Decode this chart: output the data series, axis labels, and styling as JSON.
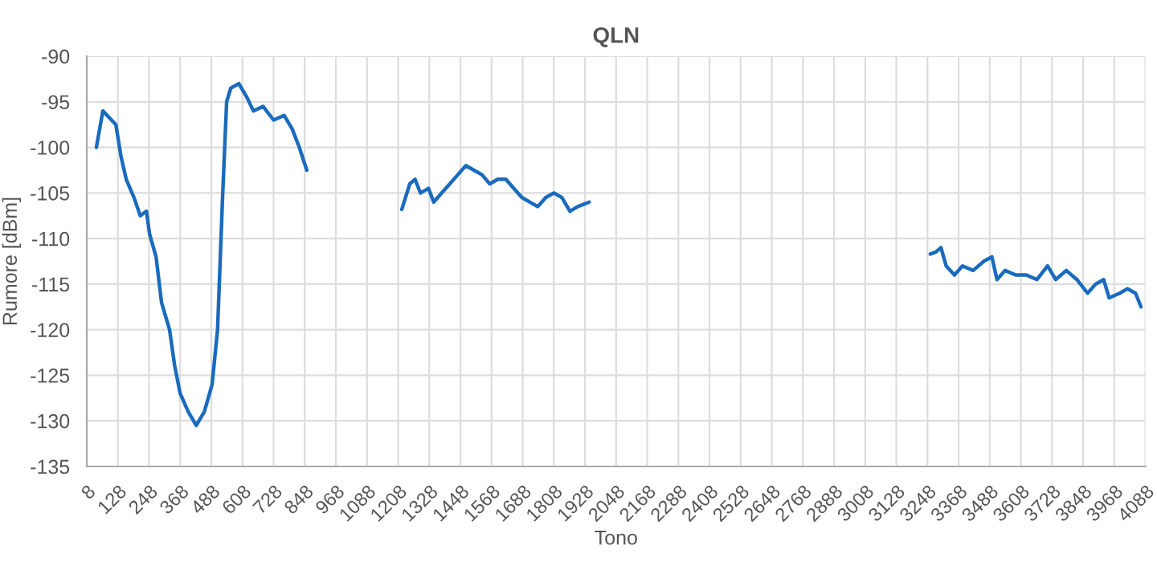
{
  "chart_data": {
    "type": "line",
    "title": "QLN",
    "xlabel": "Tono",
    "ylabel": "Rumore [dBm]",
    "x": [
      45,
      70,
      120,
      140,
      160,
      190,
      214,
      238,
      250,
      275,
      296,
      327,
      347,
      368,
      399,
      430,
      461,
      491,
      512,
      532,
      547,
      563,
      594,
      625,
      650,
      687,
      728,
      769,
      800,
      827,
      856,
      1050,
      1222,
      1253,
      1273,
      1294,
      1325,
      1345,
      1376,
      1407,
      1438,
      1469,
      1500,
      1531,
      1561,
      1592,
      1623,
      1654,
      1685,
      1715,
      1746,
      1777,
      1808,
      1839,
      1870,
      1900,
      1944,
      2600,
      3259,
      3279,
      3300,
      3320,
      3352,
      3383,
      3424,
      3465,
      3496,
      3516,
      3547,
      3588,
      3629,
      3670,
      3711,
      3742,
      3783,
      3824,
      3865,
      3896,
      3927,
      3948,
      3989,
      4019,
      4050,
      4071
    ],
    "series": [
      {
        "color": "#1a6bbd",
        "values": [
          -100,
          -96,
          -97.5,
          -101,
          -103.5,
          -105.5,
          -107.5,
          -107,
          -109.5,
          -112,
          -117,
          -120,
          -124,
          -127,
          -129,
          -130.5,
          -129,
          -126,
          -120,
          -105,
          -95,
          -93.5,
          -93,
          -94.5,
          -96,
          -95.5,
          -97,
          -96.5,
          -98,
          -100,
          -102.5,
          null,
          -106.8,
          -104,
          -103.5,
          -105,
          -104.5,
          -106,
          -105,
          -104,
          -103,
          -102,
          -102.5,
          -103,
          -104,
          -103.5,
          -103.5,
          -104.5,
          -105.5,
          -106,
          -106.5,
          -105.5,
          -105,
          -105.5,
          -107,
          -106.5,
          -106,
          null,
          -111.7,
          -111.5,
          -111,
          -113,
          -114,
          -113,
          -113.5,
          -112.5,
          -112,
          -114.5,
          -113.5,
          -114,
          -114,
          -114.5,
          -113,
          -114.5,
          -113.5,
          -114.5,
          -116,
          -115,
          -114.5,
          -116.5,
          -116,
          -115.5,
          -116,
          -117.5
        ]
      }
    ],
    "xlim": [
      8,
      4088
    ],
    "xticks": [
      8,
      128,
      248,
      368,
      488,
      608,
      728,
      848,
      968,
      1088,
      1208,
      1328,
      1448,
      1568,
      1688,
      1808,
      1928,
      2048,
      2168,
      2288,
      2408,
      2528,
      2648,
      2768,
      2888,
      3008,
      3128,
      3248,
      3368,
      3488,
      3608,
      3728,
      3848,
      3968,
      4088
    ],
    "ylim": [
      -135,
      -90
    ],
    "yticks": [
      -135,
      -130,
      -125,
      -120,
      -115,
      -110,
      -105,
      -100,
      -95,
      -90
    ],
    "grid": true,
    "marker": "none",
    "line_style": "solid"
  }
}
